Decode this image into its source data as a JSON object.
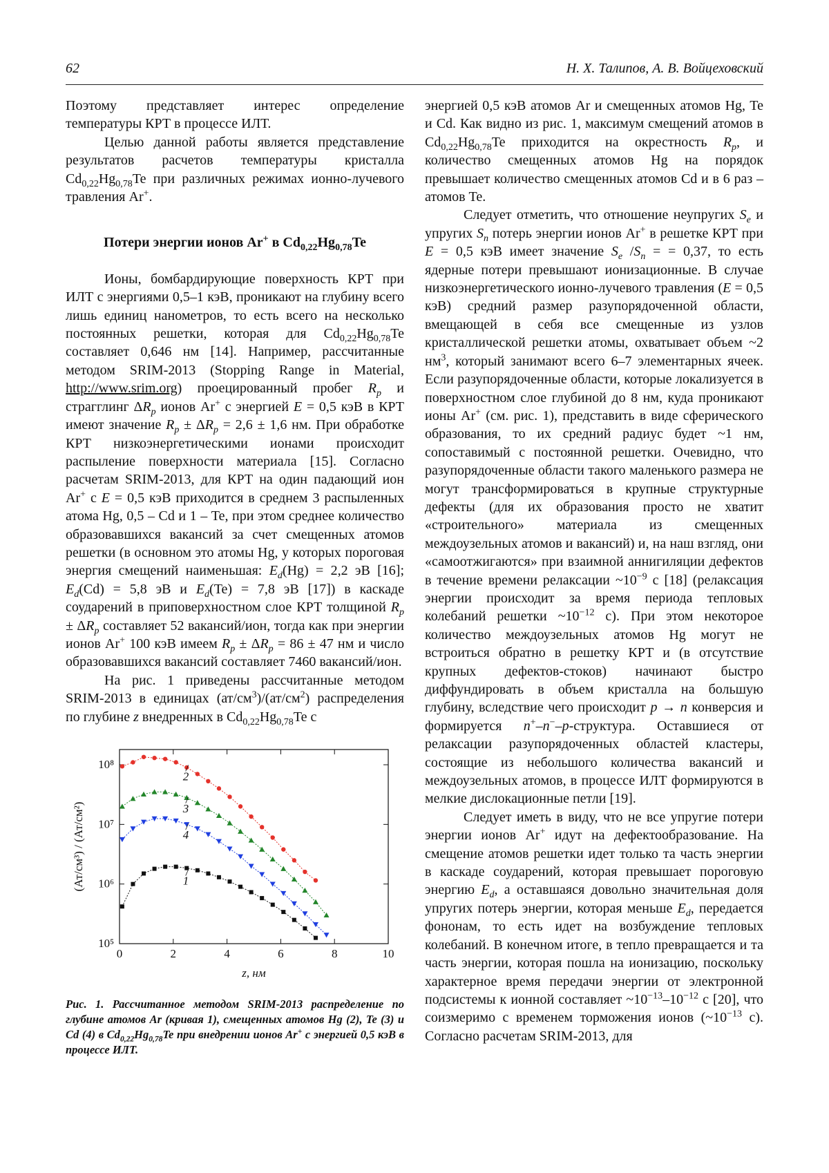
{
  "header": {
    "page_number": "62",
    "authors": "Н. Х. Талипов, А. В. Войцеховский"
  },
  "left_column": {
    "blocks": [
      {
        "kind": "paragraph",
        "indent": false,
        "runs": [
          "Поэтому представляет интерес определение температуры КРТ в процессе ИЛТ."
        ]
      },
      {
        "kind": "paragraph",
        "indent": true,
        "runs": [
          "Целью данной работы является представление результатов расчетов температуры кристалла Cd",
          {
            "sub": "0,22"
          },
          "Hg",
          {
            "sub": "0,78"
          },
          "Te при различных режимах ионно-лучевого травления Ar",
          {
            "sup": "+"
          },
          "."
        ]
      },
      {
        "kind": "heading",
        "indent": false,
        "runs": [
          "Потери энергии ионов Ar",
          {
            "sup": "+"
          },
          " в Cd",
          {
            "sub": "0,22"
          },
          "Hg",
          {
            "sub": "0,78"
          },
          "Te"
        ]
      },
      {
        "kind": "paragraph",
        "indent": true,
        "runs": [
          "Ионы, бомбардирующие поверхность КРТ при ИЛТ с энергиями 0,5–1 кэВ, проникают на глубину всего лишь единиц нанометров, то есть всего на несколько постоянных решетки, которая для Cd",
          {
            "sub": "0,22"
          },
          "Hg",
          {
            "sub": "0,78"
          },
          "Te составляет 0,646 нм [14]. Например, рассчитанные методом SRIM-2013 (Stopping Range in Material, ",
          {
            "u": "http://www.srim.org"
          },
          ") проецированный пробег ",
          {
            "i": "R"
          },
          {
            "isub": "p"
          },
          " и страгглинг Δ",
          {
            "i": "R"
          },
          {
            "isub": "p"
          },
          " ионов Ar",
          {
            "sup": "+"
          },
          " с энергией ",
          {
            "i": "E"
          },
          " = 0,5 кэВ в КРТ имеют значение ",
          {
            "i": "R"
          },
          {
            "isub": "p"
          },
          " ± Δ",
          {
            "i": "R"
          },
          {
            "isub": "p"
          },
          " = 2,6 ± 1,6 нм. При обработке КРТ низкоэнергетическими ионами происходит распыление поверхности материала [15]. Согласно расчетам SRIM-2013, для КРТ на один падающий ион Ar",
          {
            "sup": "+"
          },
          " с ",
          {
            "i": "E"
          },
          " = 0,5 кэВ приходится в среднем 3 распыленных атома Hg, 0,5 – Cd и 1 – Te, при этом среднее количество образовавшихся вакансий за счет смещенных атомов решетки (в основном это атомы Hg, у которых пороговая энергия смещений наименьшая: ",
          {
            "i": "E"
          },
          {
            "isub": "d"
          },
          "(Hg) = 2,2 эВ [16]; ",
          {
            "i": "E"
          },
          {
            "isub": "d"
          },
          "(Cd) = 5,8 эВ и ",
          {
            "i": "E"
          },
          {
            "isub": "d"
          },
          "(Te) = 7,8 эВ [17]) в каскаде соударений в приповерхностном слое КРТ толщиной ",
          {
            "i": "R"
          },
          {
            "isub": "p"
          },
          " ± Δ",
          {
            "i": "R"
          },
          {
            "isub": "p"
          },
          " составляет 52 вакансий/ион, тогда как при энергии ионов Ar",
          {
            "sup": "+"
          },
          " 100 кэВ имеем ",
          {
            "i": "R"
          },
          {
            "isub": "p"
          },
          " ± Δ",
          {
            "i": "R"
          },
          {
            "isub": "p"
          },
          " = 86 ± 47 нм и число образовавшихся вакансий составляет 7460 вакансий/ион."
        ]
      },
      {
        "kind": "paragraph",
        "indent": true,
        "runs": [
          "На рис. 1 приведены рассчитанные методом SRIM-2013 в единицах (ат/см",
          {
            "sup": "3"
          },
          ")/(ат/см",
          {
            "sup": "2"
          },
          ") распределения по глубине ",
          {
            "i": "z"
          },
          " внедренных в Cd",
          {
            "sub": "0,22"
          },
          "Hg",
          {
            "sub": "0,78"
          },
          "Te с"
        ]
      }
    ]
  },
  "chart_data": {
    "type": "line",
    "log_y": true,
    "grid": false,
    "x_label": "z, нм",
    "y_label": "(Ат/см³) / (Ат/см²)",
    "x": [
      0.1,
      0.5,
      0.9,
      1.3,
      1.7,
      2.1,
      2.5,
      2.9,
      3.3,
      3.7,
      4.1,
      4.5,
      4.9,
      5.3,
      5.7,
      6.1,
      6.5,
      6.9,
      7.3,
      7.7
    ],
    "xlim": [
      0,
      10
    ],
    "xticks": [
      0,
      2,
      4,
      6,
      8,
      10
    ],
    "ylim": [
      100000,
      180000000
    ],
    "yticks": [
      {
        "value": 100000,
        "label": "10⁵"
      },
      {
        "value": 1000000,
        "label": "10⁶"
      },
      {
        "value": 10000000,
        "label": "10⁷"
      },
      {
        "value": 100000000,
        "label": "10⁸"
      }
    ],
    "series": [
      {
        "name": "1",
        "color": "#111111",
        "marker": "square",
        "values": [
          420000,
          1000000,
          1500000,
          1800000,
          1950000,
          1950000,
          1850000,
          1700000,
          1500000,
          1300000,
          1100000,
          900000,
          730000,
          580000,
          450000,
          340000,
          250000,
          180000,
          125000,
          null
        ]
      },
      {
        "name": "2",
        "color": "#e5322b",
        "marker": "circle",
        "values": [
          94000000,
          110000000,
          135000000,
          130000000,
          125000000,
          110000000,
          90000000,
          70000000,
          53000000,
          40000000,
          29000000,
          20000000,
          13500000,
          9000000,
          6000000,
          3800000,
          2500000,
          1600000,
          1150000,
          null
        ]
      },
      {
        "name": "3",
        "color": "#23862a",
        "marker": "triangle",
        "values": [
          20000000,
          27000000,
          32000000,
          35000000,
          35000000,
          32000000,
          28000000,
          23000000,
          18000000,
          14000000,
          10500000,
          7600000,
          5400000,
          3800000,
          2600000,
          1800000,
          1200000,
          780000,
          500000,
          300000
        ]
      },
      {
        "name": "4",
        "color": "#1f3fe0",
        "marker": "triangle-down",
        "values": [
          5600000,
          8500000,
          11000000,
          12500000,
          12500000,
          11500000,
          10000000,
          8500000,
          6800000,
          5200000,
          3900000,
          2900000,
          2000000,
          1450000,
          1000000,
          700000,
          470000,
          320000,
          210000,
          140000
        ]
      }
    ]
  },
  "figure_caption": [
    "Рис. 1. Рассчитанное методом SRIM-2013 распределение по глубине атомов Ar (кривая 1), смещенных атомов Hg (2), Te (3) и Cd (4) в Cd",
    {
      "sub": "0,22"
    },
    "Hg",
    {
      "sub": "0,78"
    },
    "Te при внедрении ионов Ar",
    {
      "sup": "+"
    },
    " с энергией 0,5 кэВ в процессе ИЛТ."
  ],
  "right_column": {
    "blocks": [
      {
        "kind": "paragraph",
        "indent": false,
        "runs": [
          "энергией 0,5 кэВ атомов Ar и смещенных атомов Hg, Te и Cd. Как видно из рис. 1, максимум смещений атомов в Cd",
          {
            "sub": "0,22"
          },
          "Hg",
          {
            "sub": "0,78"
          },
          "Te приходится на окрестность ",
          {
            "i": "R"
          },
          {
            "isub": "p"
          },
          ", и количество смещенных атомов Hg на порядок превышает количество смещенных атомов Cd и в 6 раз – атомов Te."
        ]
      },
      {
        "kind": "paragraph",
        "indent": true,
        "runs": [
          "Следует отметить, что отношение неупругих ",
          {
            "i": "S"
          },
          {
            "isub": "e"
          },
          " и упругих ",
          {
            "i": "S"
          },
          {
            "isub": "n"
          },
          " потерь энергии ионов Ar",
          {
            "sup": "+"
          },
          " в решетке КРТ при ",
          {
            "i": "E"
          },
          " = 0,5 кэВ имеет значение ",
          {
            "i": "S"
          },
          {
            "isub": "e"
          },
          " /",
          {
            "i": "S"
          },
          {
            "isub": "n"
          },
          " = = 0,37, то есть ядерные потери превышают ионизационные. В случае низкоэнергетического ионно-лучевого травления (",
          {
            "i": "E"
          },
          " = 0,5 кэВ) средний размер разупорядоченной области, вмещающей в себя все смещенные из узлов кристаллической решетки атомы, охватывает объем ~2 нм",
          {
            "sup": "3"
          },
          ", который занимают всего 6–7 элементарных ячеек. Если разупорядоченные области, которые локализуется в поверхностном слое глубиной до 8 нм, куда проникают ионы Ar",
          {
            "sup": "+"
          },
          " (см. рис. 1), представить в виде сферического образования, то их средний радиус будет ~1 нм, сопоставимый с постоянной решетки. Очевидно, что разупорядоченные области такого маленького размера не могут трансформироваться в крупные структурные дефекты (для их образования просто не хватит «строительного» материала из смещенных междоузельных атомов и вакансий) и, на наш взгляд, они «самоотжигаются» при взаимной аннигиляции дефектов в течение времени релаксации ~10",
          {
            "sup": "−9"
          },
          " с [18] (релаксация энергии происходит за время периода тепловых колебаний решетки ~10",
          {
            "sup": "−12"
          },
          " с). При этом некоторое количество междоузельных атомов Hg могут не встроиться обратно в решетку КРТ и (в отсутствие крупных дефектов-стоков) начинают быстро диффундировать в объем кристалла на большую глубину, вследствие чего происходит ",
          {
            "i": "p"
          },
          " → ",
          {
            "i": "n"
          },
          " конверсия и формируется ",
          {
            "i": "n"
          },
          {
            "sup": "+"
          },
          "–",
          {
            "i": "n"
          },
          {
            "sup": "−"
          },
          "–",
          {
            "i": "p"
          },
          "-структура. Оставшиеся от релаксации разупорядоченных областей кластеры, состоящие из небольшого количества вакансий и междоузельных атомов, в процессе ИЛТ формируются в мелкие дислокационные петли [19]."
        ]
      },
      {
        "kind": "paragraph",
        "indent": true,
        "runs": [
          "Следует иметь в виду, что не все упругие потери энергии ионов Ar",
          {
            "sup": "+"
          },
          " идут на дефектообразование. На смещение атомов решетки идет только та часть энергии в каскаде соударений, которая превышает пороговую энергию ",
          {
            "i": "E"
          },
          {
            "isub": "d"
          },
          ", а оставшаяся довольно значительная доля упругих потерь энергии, которая меньше ",
          {
            "i": "E"
          },
          {
            "isub": "d"
          },
          ", передается фононам, то есть идет на возбуждение тепловых колебаний. В конечном итоге, в тепло превращается и та часть энергии, которая пошла на ионизацию, поскольку характерное время передачи энергии от электронной подсистемы к ионной составляет ~10",
          {
            "sup": "−13"
          },
          "–10",
          {
            "sup": "−12"
          },
          " с [20], что соизмеримо с временем торможения ионов (~10",
          {
            "sup": "−13"
          },
          " с). Согласно расчетам SRIM-2013, для"
        ]
      }
    ]
  }
}
